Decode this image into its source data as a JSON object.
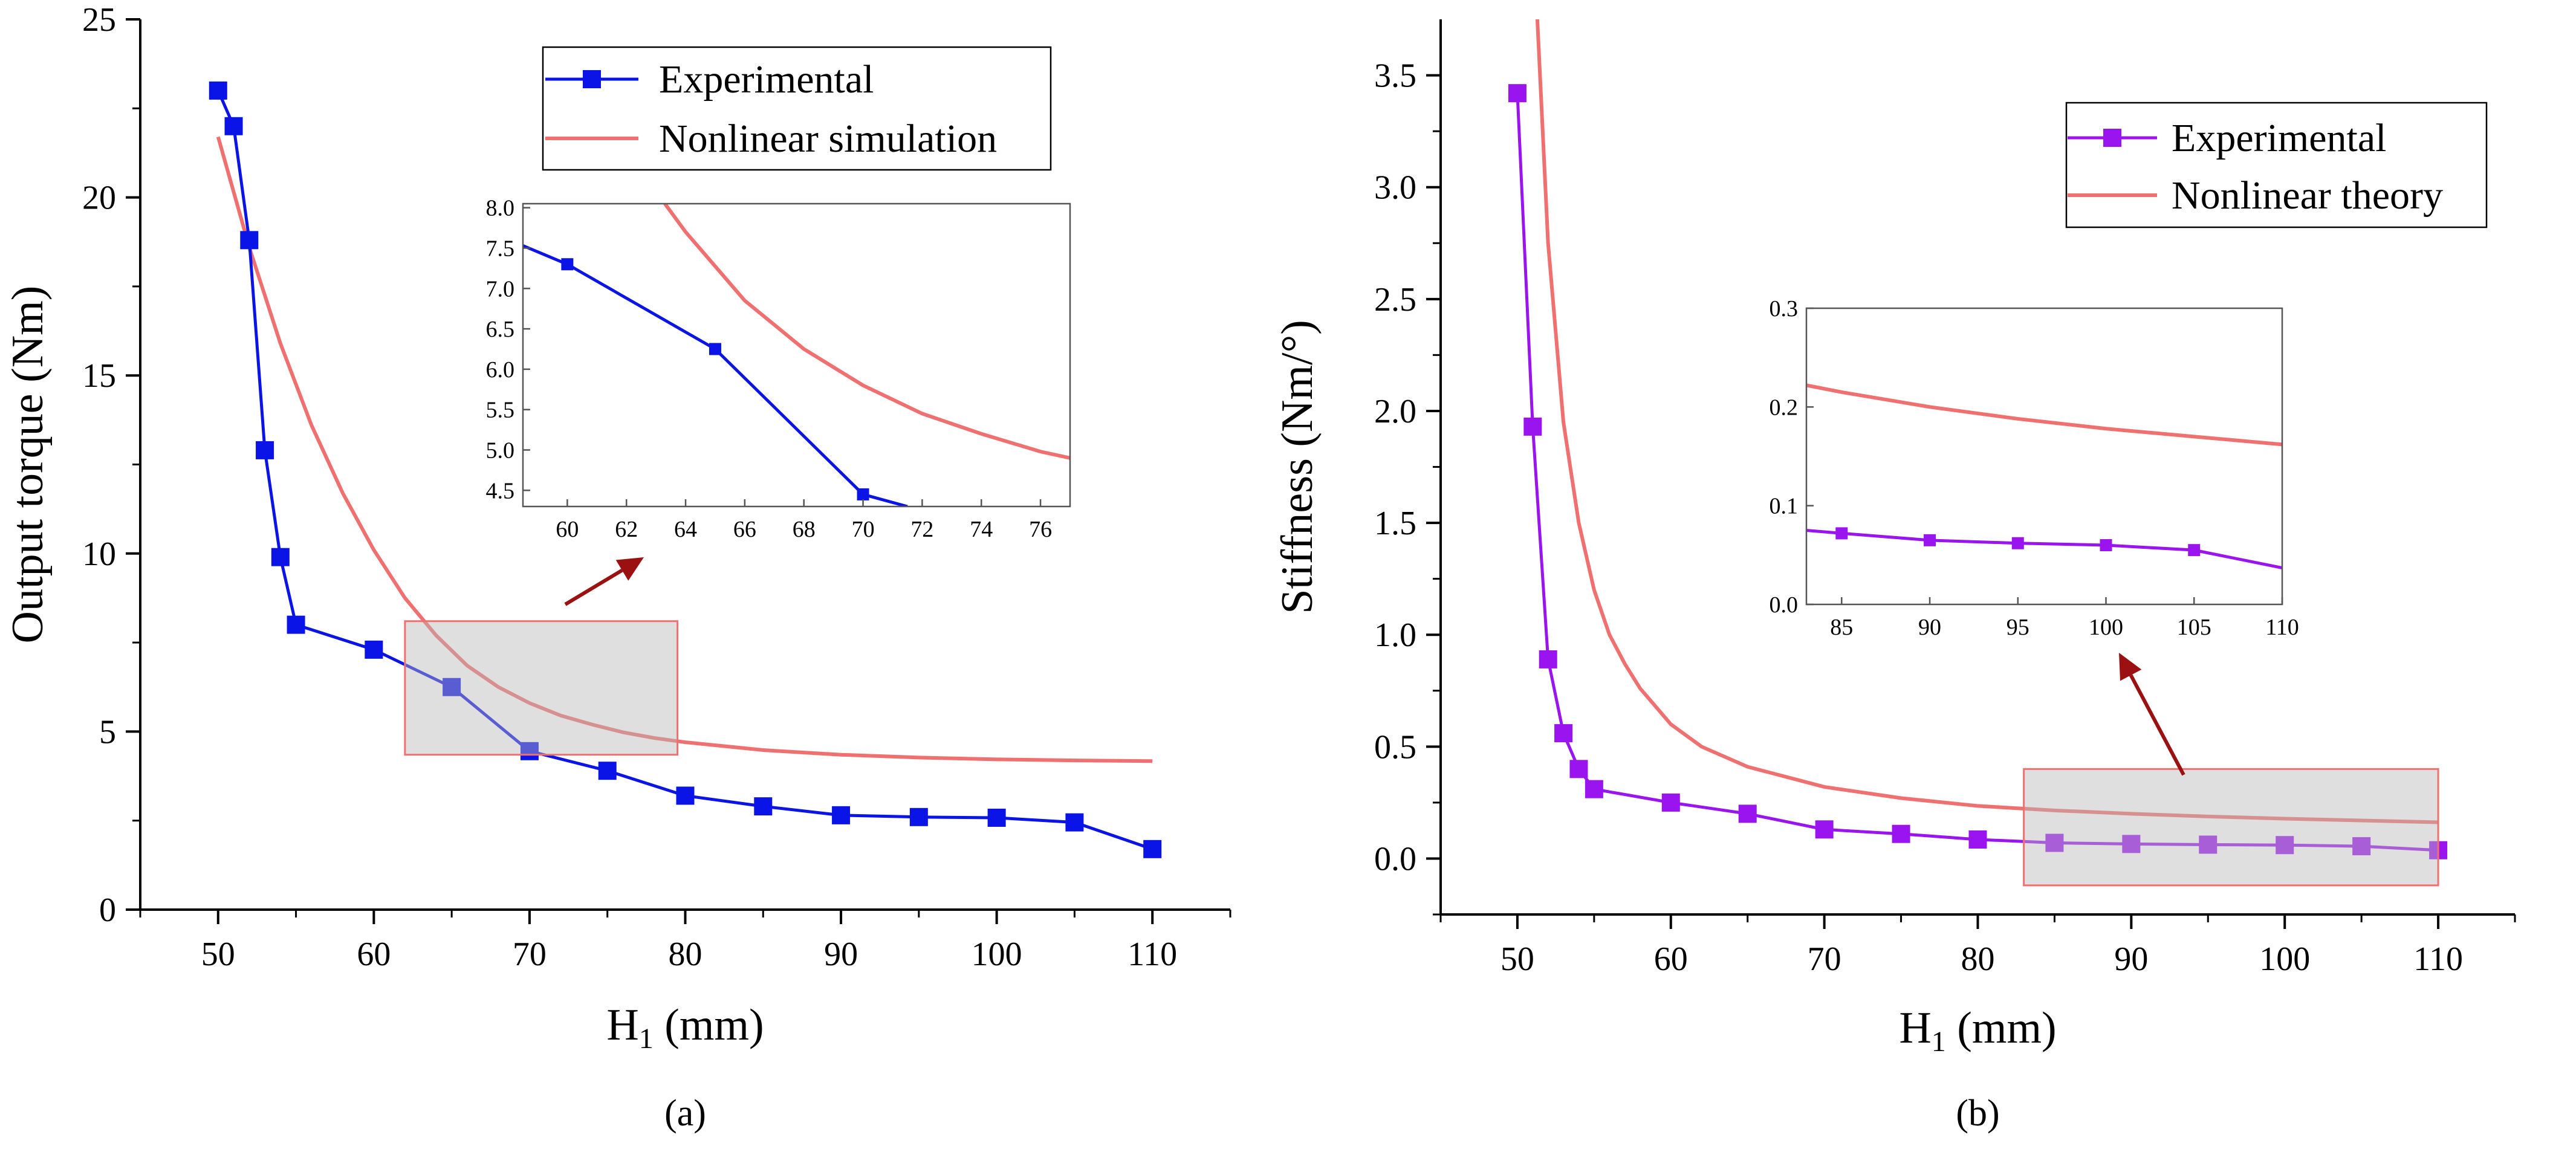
{
  "chart_data": [
    {
      "panel": "a",
      "type": "line",
      "caption": "(a)",
      "xlabel": "H",
      "xlabel_sub": "1",
      "xlabel_unit": "(mm)",
      "ylabel": "Output torque  (Nm)",
      "xlim": [
        45,
        115
      ],
      "ylim": [
        0,
        25
      ],
      "xticks": [
        "50",
        "60",
        "70",
        "80",
        "90",
        "100",
        "110"
      ],
      "yticks": [
        "0",
        "5",
        "10",
        "15",
        "20",
        "25"
      ],
      "series": [
        {
          "name": "Experimental",
          "color": "#0a14e6",
          "marker": "square",
          "x": [
            50,
            51,
            52,
            53,
            54,
            55,
            60,
            65,
            70,
            75,
            80,
            85,
            90,
            95,
            100,
            105,
            110
          ],
          "y": [
            23.0,
            22.0,
            18.8,
            12.9,
            9.9,
            8.0,
            7.3,
            6.25,
            4.45,
            3.9,
            3.2,
            2.9,
            2.65,
            2.6,
            2.58,
            2.45,
            1.7
          ]
        },
        {
          "name": "Nonlinear simulation",
          "color": "#f07070",
          "marker": "none",
          "x": [
            50,
            52,
            54,
            56,
            58,
            60,
            62,
            64,
            66,
            68,
            70,
            72,
            74,
            76,
            78,
            80,
            85,
            90,
            95,
            100,
            105,
            110
          ],
          "y": [
            21.7,
            18.6,
            15.9,
            13.6,
            11.7,
            10.1,
            8.75,
            7.7,
            6.85,
            6.25,
            5.8,
            5.45,
            5.2,
            4.98,
            4.82,
            4.7,
            4.48,
            4.35,
            4.27,
            4.22,
            4.19,
            4.17
          ]
        }
      ],
      "highlight_region": {
        "x": [
          62,
          79.5
        ],
        "y": [
          4.35,
          8.1
        ]
      },
      "inset": {
        "xlim": [
          58.5,
          77
        ],
        "ylim": [
          4.3,
          8.05
        ],
        "xticks": [
          "60",
          "62",
          "64",
          "66",
          "68",
          "70",
          "72",
          "74",
          "76"
        ],
        "yticks": [
          "4.5",
          "5.0",
          "5.5",
          "6.0",
          "6.5",
          "7.0",
          "7.5",
          "8.0"
        ],
        "experimental": {
          "x": [
            58.5,
            60,
            65,
            70,
            71.5
          ],
          "y": [
            7.53,
            7.3,
            6.25,
            4.45,
            4.3
          ]
        },
        "simulation": {
          "x": [
            63.3,
            64,
            66,
            68,
            70,
            72,
            74,
            76,
            77
          ],
          "y": [
            8.05,
            7.7,
            6.85,
            6.25,
            5.8,
            5.45,
            5.2,
            4.98,
            4.9
          ]
        }
      }
    },
    {
      "panel": "b",
      "type": "line",
      "caption": "(b)",
      "xlabel": "H",
      "xlabel_sub": "1",
      "xlabel_unit": "(mm)",
      "ylabel": "Stiffness  (Nm/°)",
      "xlim": [
        45,
        115
      ],
      "ylim": [
        -0.25,
        3.75
      ],
      "xticks": [
        "50",
        "60",
        "70",
        "80",
        "90",
        "100",
        "110"
      ],
      "yticks": [
        "0.0",
        "0.5",
        "1.0",
        "1.5",
        "2.0",
        "2.5",
        "3.0",
        "3.5"
      ],
      "series": [
        {
          "name": "Experimental",
          "color": "#9a14f0",
          "marker": "square",
          "x": [
            50,
            51,
            52,
            53,
            54,
            55,
            60,
            65,
            70,
            75,
            80,
            85,
            90,
            95,
            100,
            105,
            110
          ],
          "y": [
            3.42,
            1.93,
            0.89,
            0.56,
            0.4,
            0.31,
            0.25,
            0.2,
            0.13,
            0.11,
            0.085,
            0.07,
            0.065,
            0.062,
            0.06,
            0.055,
            0.037
          ]
        },
        {
          "name": "Nonlinear theory",
          "color": "#f07070",
          "marker": "none",
          "x": [
            51.3,
            52,
            53,
            54,
            55,
            56,
            57,
            58,
            60,
            62,
            65,
            70,
            75,
            80,
            85,
            90,
            95,
            100,
            105,
            110
          ],
          "y": [
            3.75,
            2.75,
            1.95,
            1.5,
            1.2,
            1.0,
            0.87,
            0.76,
            0.6,
            0.5,
            0.41,
            0.32,
            0.27,
            0.235,
            0.215,
            0.2,
            0.188,
            0.178,
            0.17,
            0.162
          ]
        }
      ],
      "highlight_region": {
        "x": [
          83,
          110
        ],
        "y": [
          -0.12,
          0.4
        ]
      },
      "inset": {
        "xlim": [
          83,
          110
        ],
        "ylim": [
          0,
          0.3
        ],
        "xticks": [
          "85",
          "90",
          "95",
          "100",
          "105",
          "110"
        ],
        "yticks": [
          "0.0",
          "0.1",
          "0.2",
          "0.3"
        ],
        "experimental": {
          "x": [
            83,
            85,
            90,
            95,
            100,
            105,
            110
          ],
          "y": [
            0.075,
            0.072,
            0.065,
            0.062,
            0.06,
            0.055,
            0.037
          ]
        },
        "simulation": {
          "x": [
            83,
            85,
            90,
            95,
            100,
            105,
            110
          ],
          "y": [
            0.222,
            0.215,
            0.2,
            0.188,
            0.178,
            0.17,
            0.162
          ]
        }
      }
    }
  ]
}
